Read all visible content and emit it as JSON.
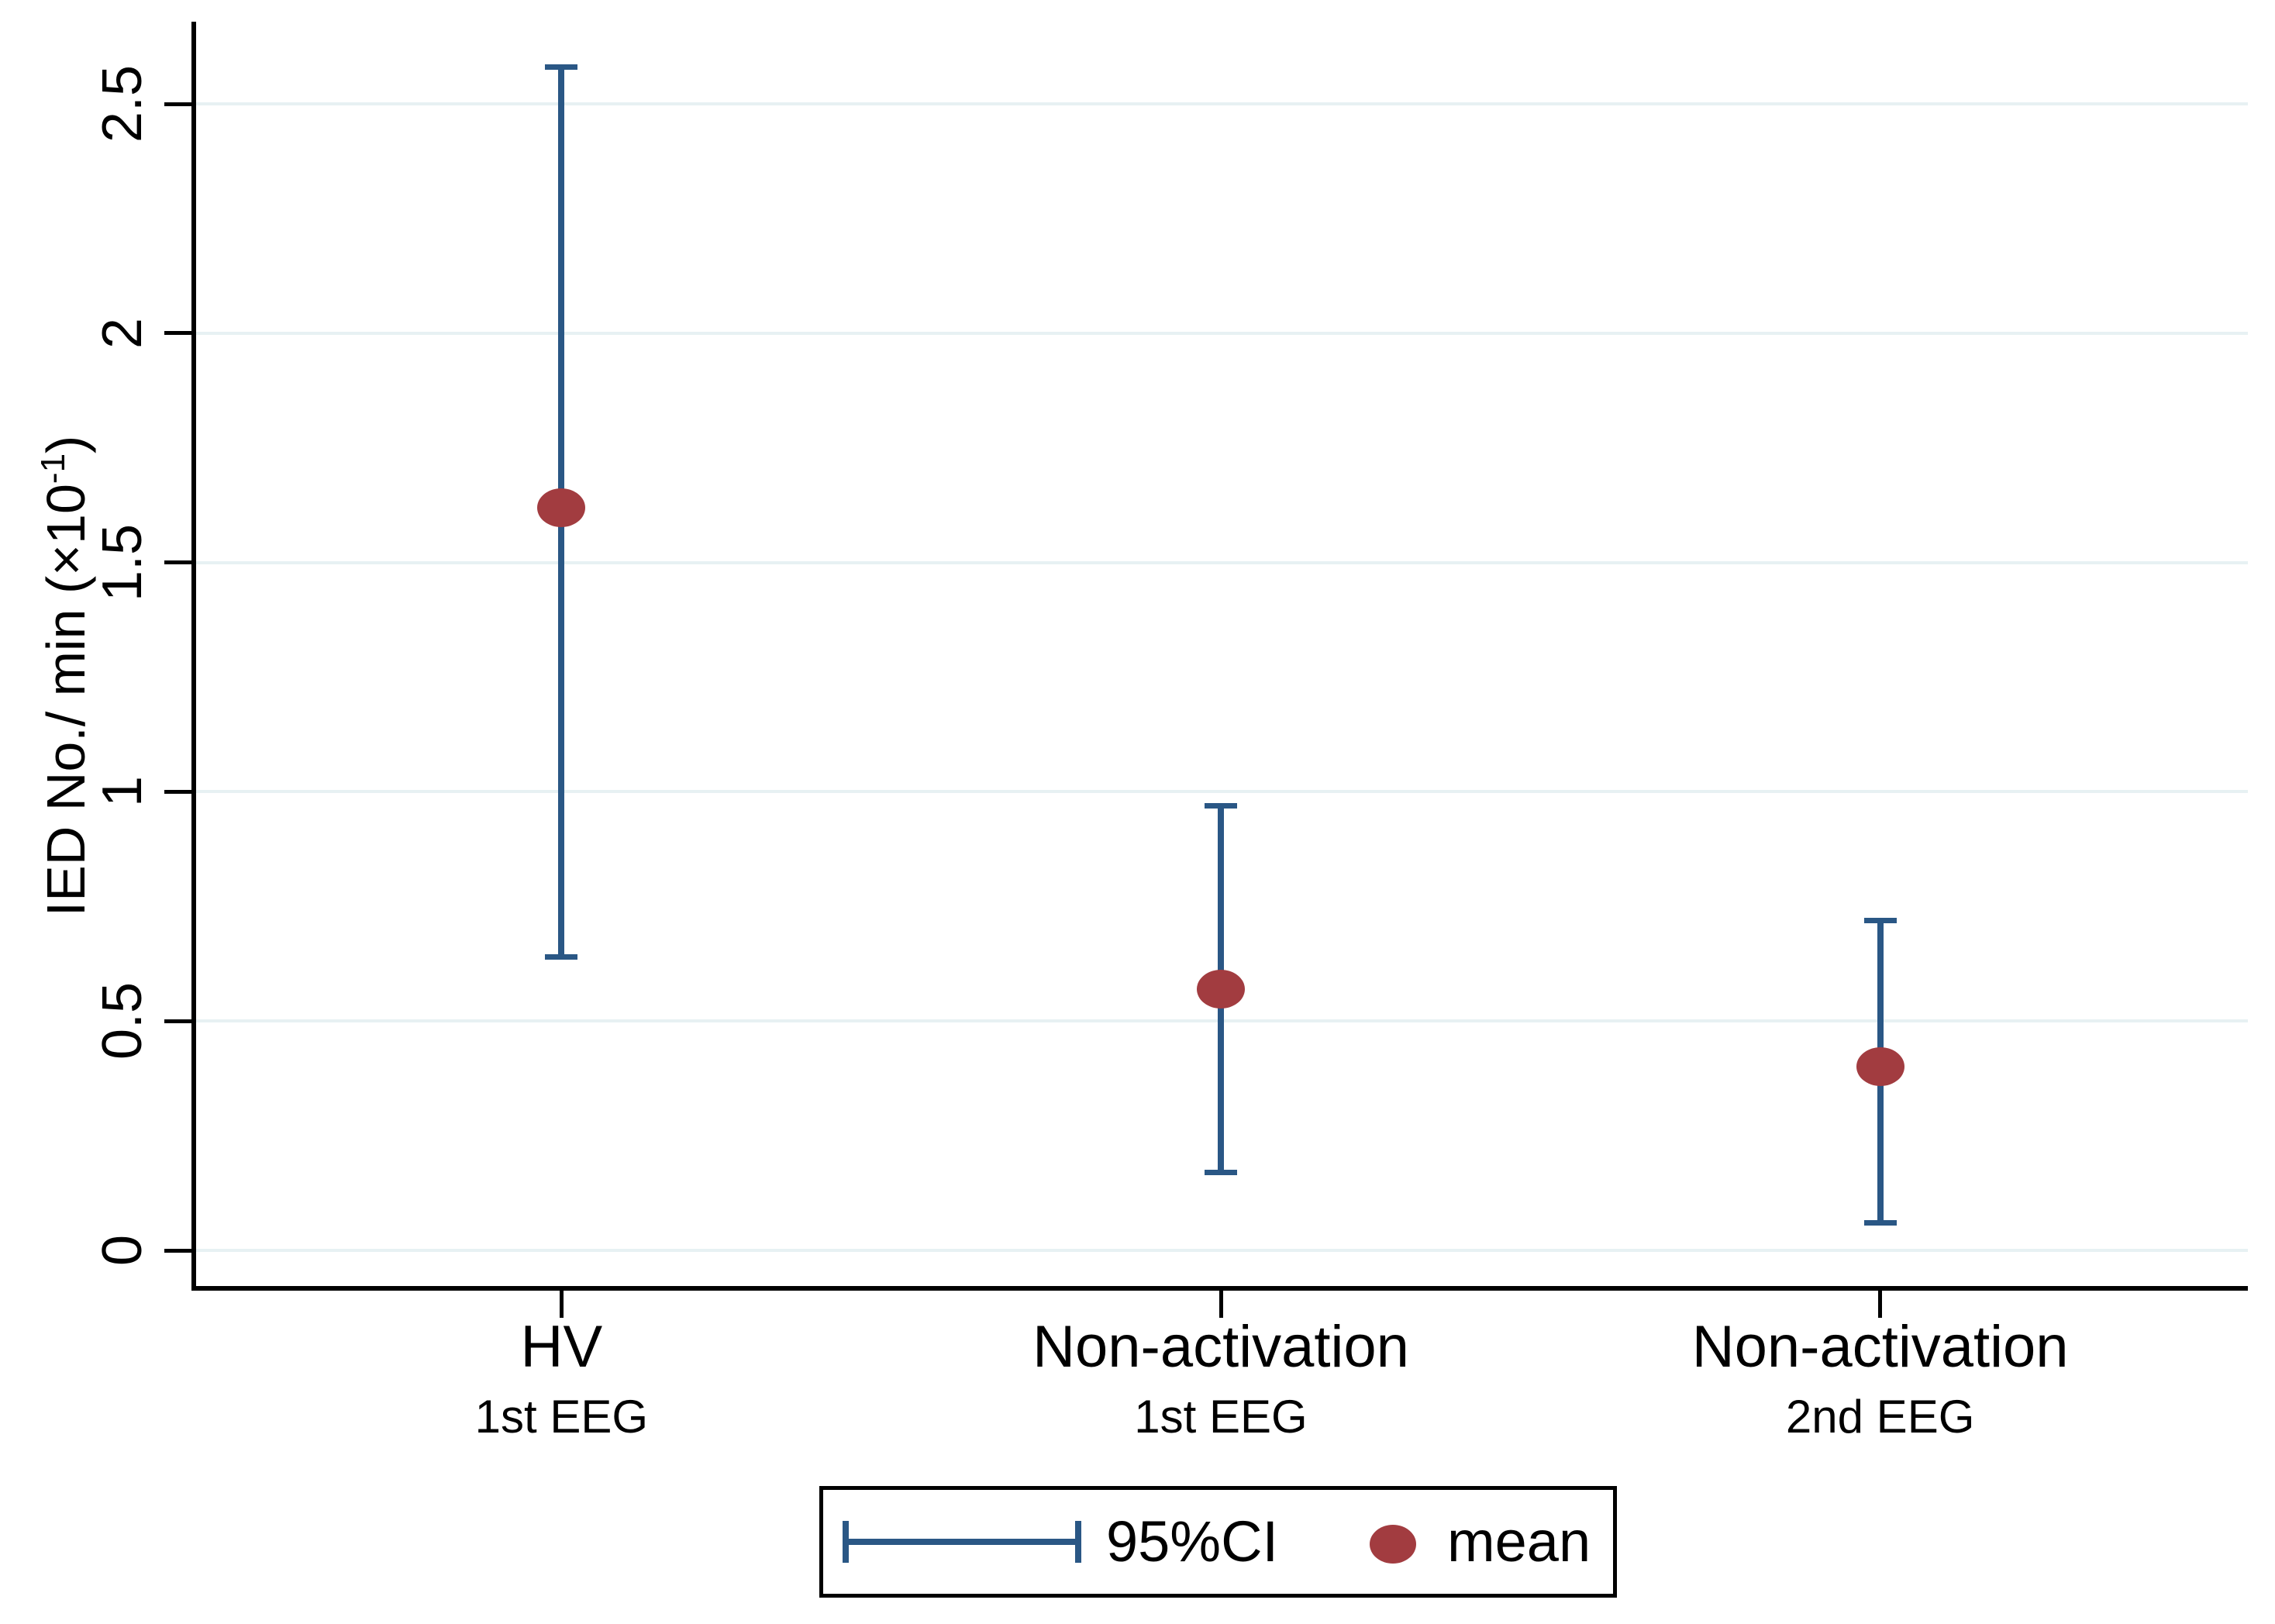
{
  "figure": {
    "background": "#ffffff"
  },
  "axis": {
    "ylabel_base": "IED No./ min (×10",
    "ylabel_sup": "-1",
    "ylabel_close": ")"
  },
  "chart_data": {
    "type": "errorbar",
    "title": "",
    "xlabel": "",
    "ylabel": "IED No./ min (×10^-1)",
    "categories": [
      "HV",
      "Non-activation",
      "Non-activation"
    ],
    "category_sublabels": [
      "1st EEG",
      "1st EEG",
      "2nd EEG"
    ],
    "series": [
      {
        "name": "mean",
        "values": [
          1.62,
          0.57,
          0.4
        ]
      },
      {
        "name": "ci_low",
        "values": [
          0.64,
          0.17,
          0.06
        ]
      },
      {
        "name": "ci_high",
        "values": [
          2.58,
          0.97,
          0.72
        ]
      }
    ],
    "yticks": [
      0,
      0.5,
      1,
      1.5,
      2,
      2.5
    ],
    "ytick_labels": [
      "0",
      "0.5",
      "1",
      "1.5",
      "2",
      "2.5"
    ],
    "ylim": [
      -0.09,
      2.68
    ],
    "grid": "horizontal",
    "legend": {
      "position": "bottom",
      "ci_label": "95%CI",
      "mean_label": "mean"
    },
    "colors": {
      "ci": "#2a5785",
      "mean": "#a23c40",
      "grid": "#e7f1f3",
      "axis": "#000000",
      "text": "#000000"
    }
  }
}
